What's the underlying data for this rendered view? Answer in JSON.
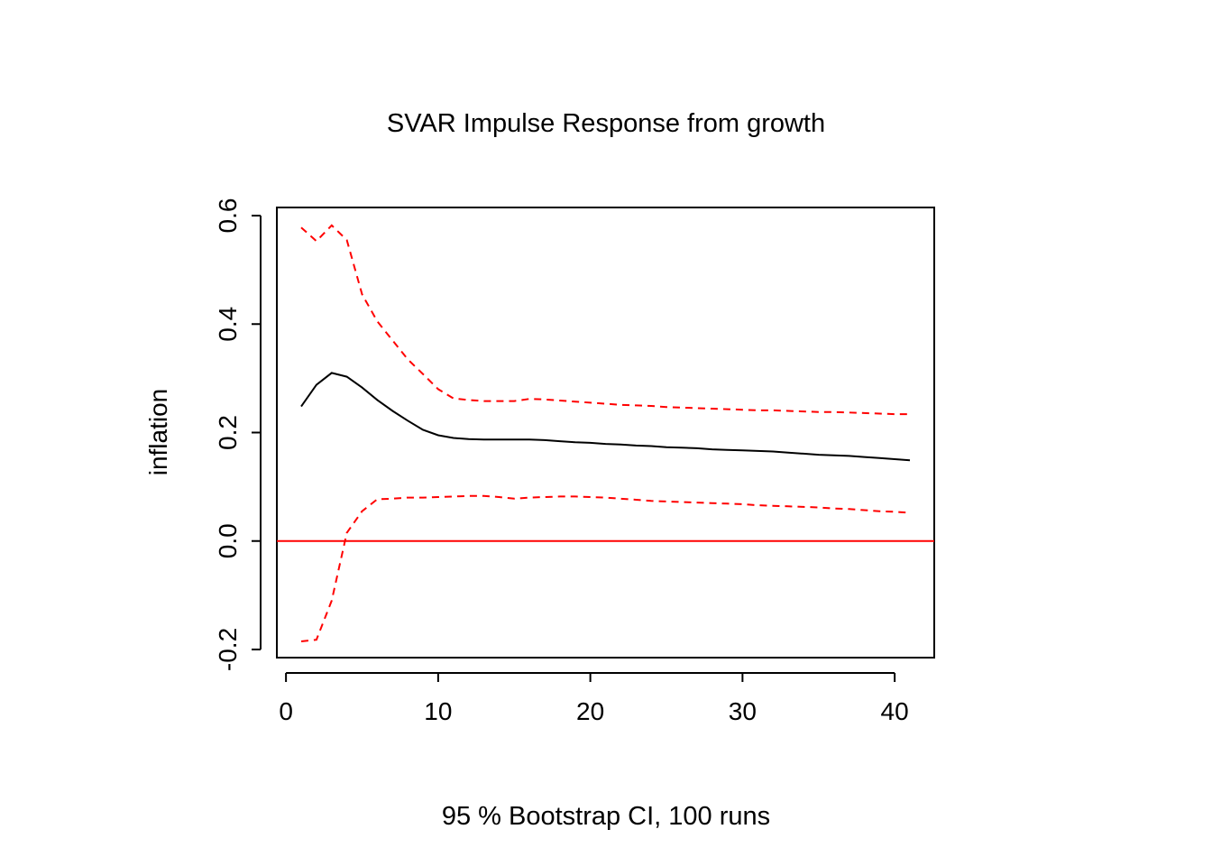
{
  "chart_data": {
    "type": "line",
    "title": "SVAR Impulse Response from growth",
    "xlabel": "95 % Bootstrap CI,  100 runs",
    "ylabel": "inflation",
    "xlim": [
      -0.6,
      42.6
    ],
    "ylim": [
      -0.215,
      0.615
    ],
    "x_ticks": [
      0,
      10,
      20,
      30,
      40
    ],
    "x_tick_labels": [
      "0",
      "10",
      "20",
      "30",
      "40"
    ],
    "y_ticks": [
      -0.2,
      0.0,
      0.2,
      0.4,
      0.6
    ],
    "y_tick_labels": [
      "-0.2",
      "0.0",
      "0.2",
      "0.4",
      "0.6"
    ],
    "grid": false,
    "reference_line": {
      "y": 0.0,
      "color": "#ff0000"
    },
    "x": [
      1,
      2,
      3,
      4,
      5,
      6,
      7,
      8,
      9,
      10,
      11,
      12,
      13,
      14,
      15,
      16,
      17,
      18,
      19,
      20,
      21,
      22,
      23,
      24,
      25,
      26,
      27,
      28,
      29,
      30,
      31,
      32,
      33,
      34,
      35,
      36,
      37,
      38,
      39,
      40,
      41
    ],
    "series": [
      {
        "role": "response",
        "color": "#000000",
        "dash": "solid",
        "values": [
          0.248,
          0.288,
          0.31,
          0.303,
          0.283,
          0.26,
          0.24,
          0.222,
          0.205,
          0.195,
          0.19,
          0.188,
          0.187,
          0.187,
          0.187,
          0.187,
          0.186,
          0.184,
          0.182,
          0.181,
          0.179,
          0.178,
          0.176,
          0.175,
          0.173,
          0.172,
          0.171,
          0.169,
          0.168,
          0.167,
          0.166,
          0.165,
          0.163,
          0.161,
          0.159,
          0.158,
          0.157,
          0.155,
          0.153,
          0.151,
          0.149
        ]
      },
      {
        "role": "upper",
        "color": "#ff0000",
        "dash": "dashed",
        "values": [
          0.578,
          0.553,
          0.582,
          0.555,
          0.455,
          0.405,
          0.37,
          0.335,
          0.308,
          0.28,
          0.263,
          0.26,
          0.258,
          0.258,
          0.258,
          0.262,
          0.261,
          0.259,
          0.257,
          0.255,
          0.253,
          0.251,
          0.25,
          0.249,
          0.247,
          0.246,
          0.245,
          0.244,
          0.243,
          0.242,
          0.241,
          0.241,
          0.24,
          0.239,
          0.238,
          0.238,
          0.237,
          0.236,
          0.235,
          0.234,
          0.234
        ]
      },
      {
        "role": "lower",
        "color": "#ff0000",
        "dash": "dashed",
        "values": [
          -0.185,
          -0.182,
          -0.11,
          0.015,
          0.055,
          0.077,
          0.078,
          0.08,
          0.08,
          0.081,
          0.082,
          0.083,
          0.083,
          0.081,
          0.078,
          0.08,
          0.081,
          0.082,
          0.082,
          0.081,
          0.08,
          0.078,
          0.076,
          0.074,
          0.073,
          0.072,
          0.071,
          0.07,
          0.069,
          0.068,
          0.066,
          0.065,
          0.064,
          0.063,
          0.062,
          0.06,
          0.059,
          0.057,
          0.055,
          0.054,
          0.052
        ]
      }
    ]
  }
}
